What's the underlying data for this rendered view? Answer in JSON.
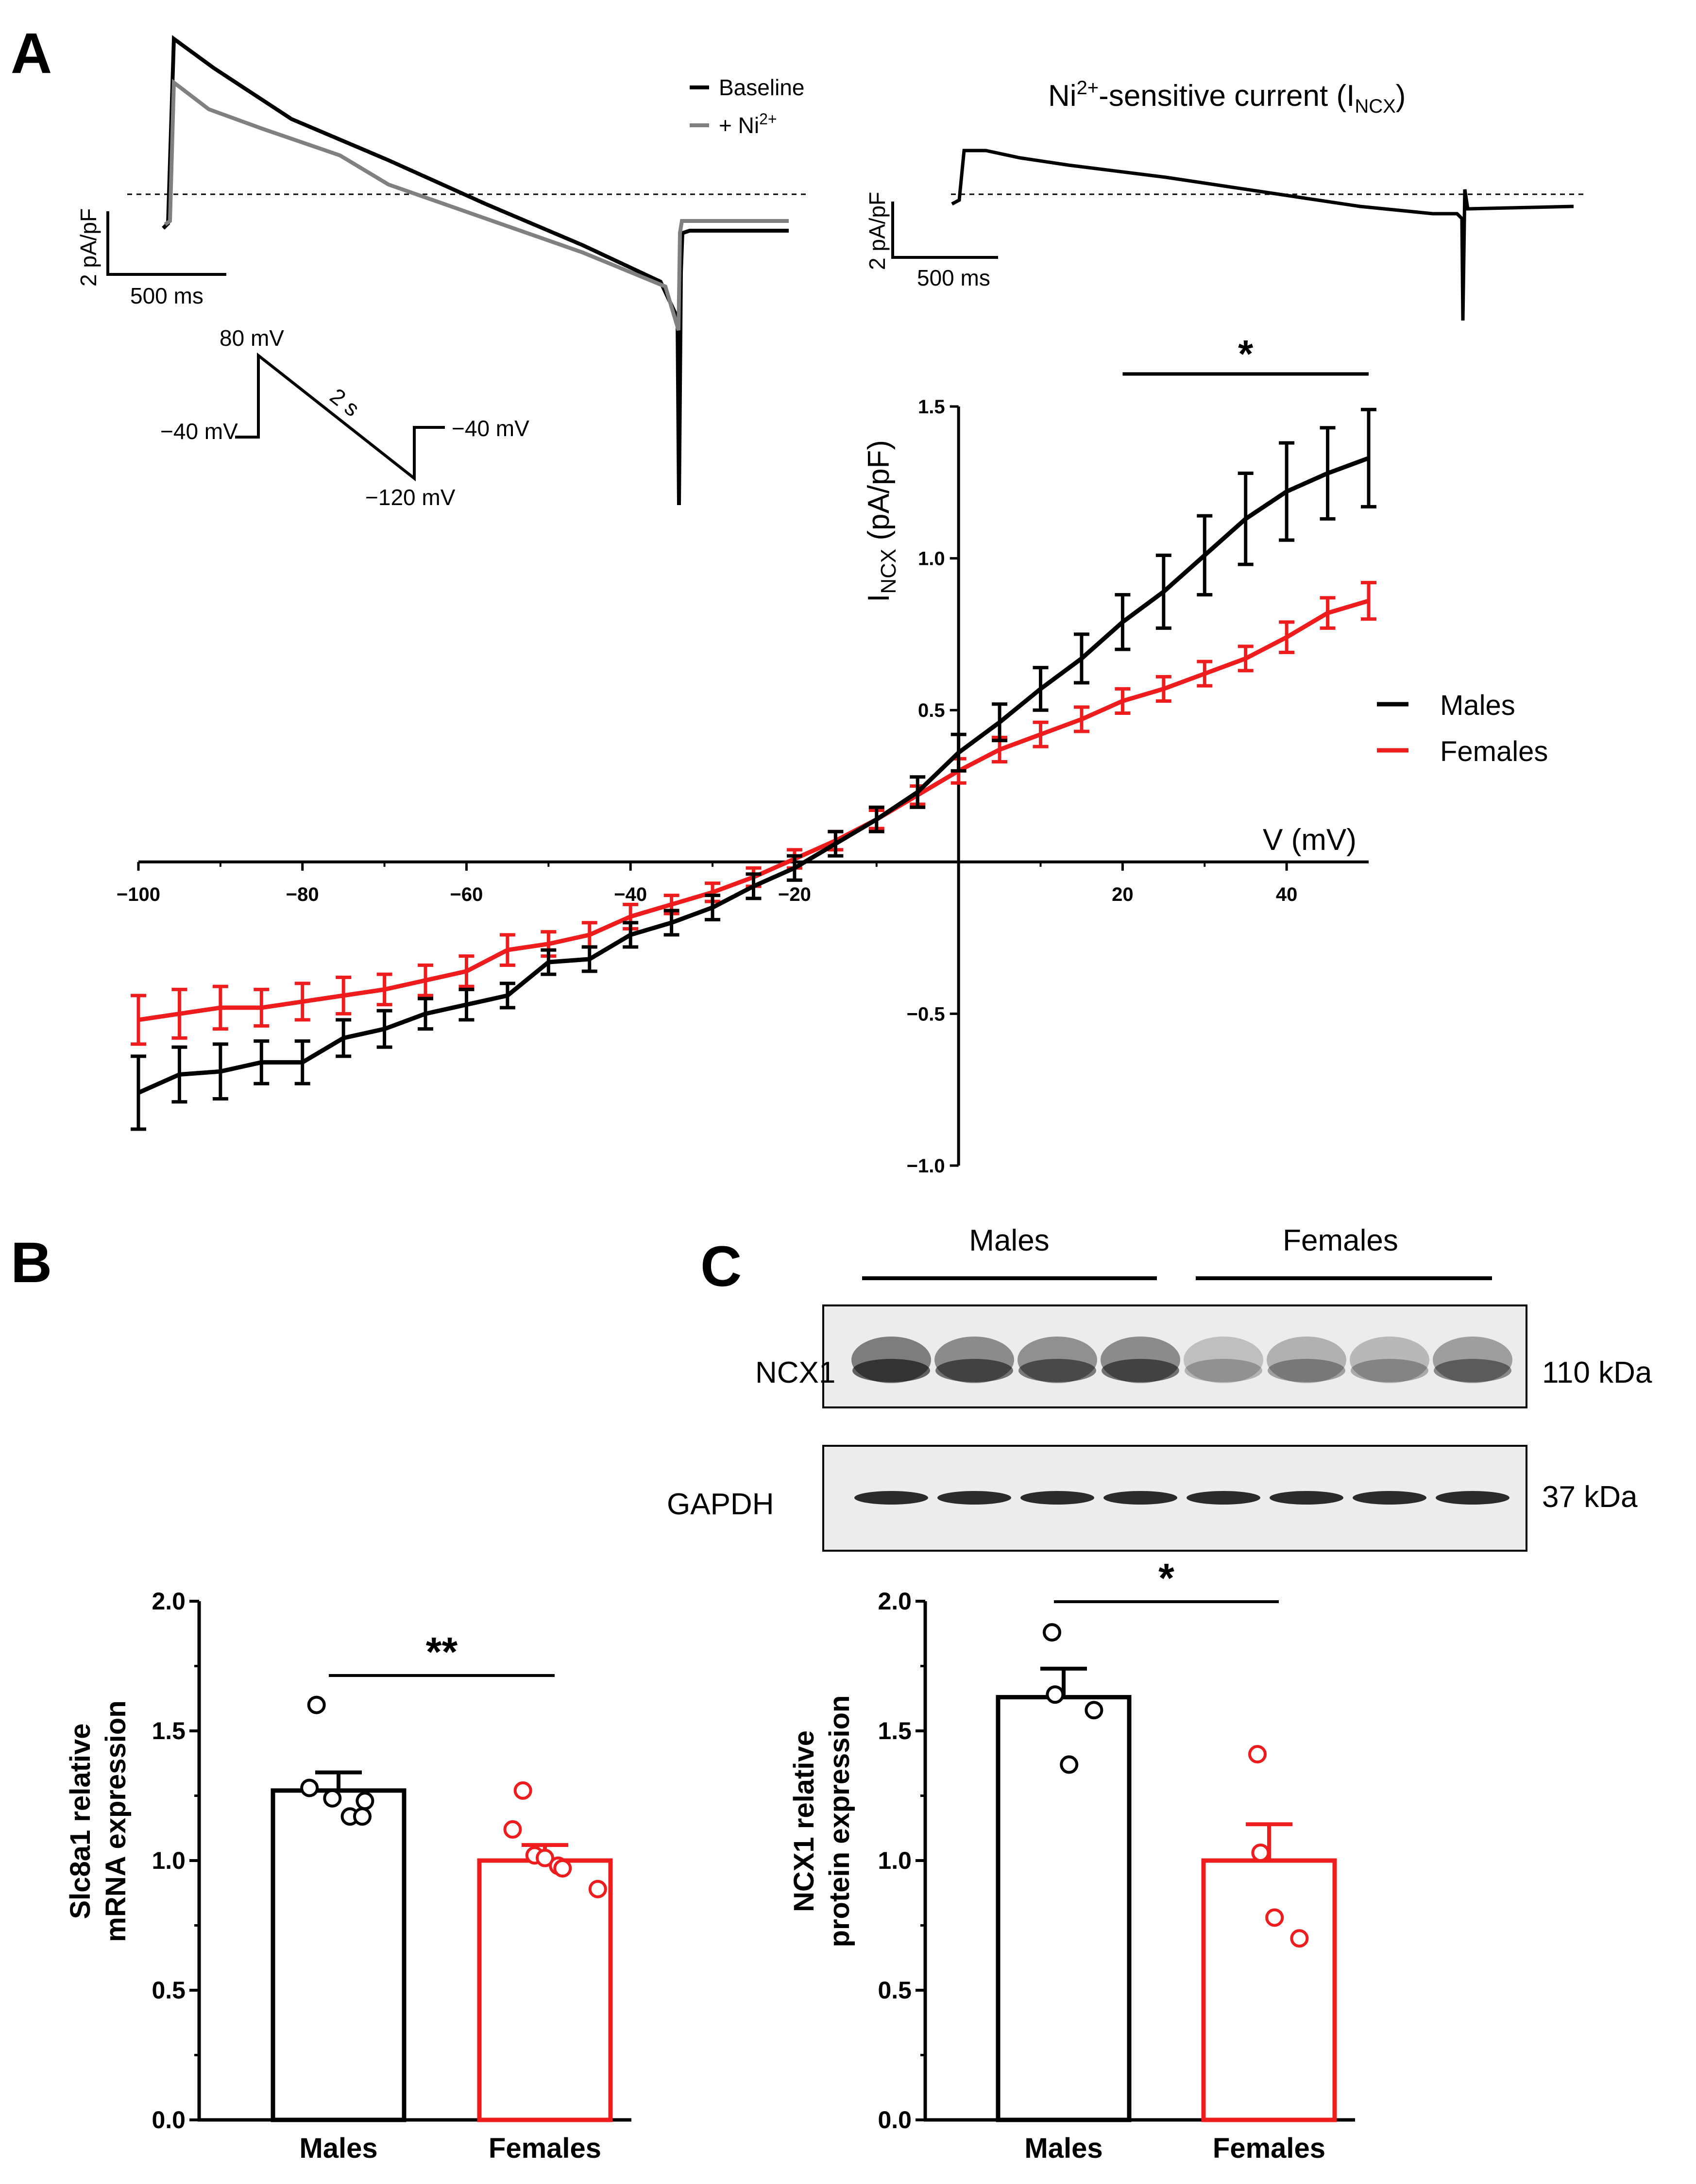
{
  "panels": {
    "a": "A",
    "b": "B",
    "c": "C"
  },
  "colors": {
    "males": "#000000",
    "females": "#ee1c1c",
    "ni": "#808080",
    "blot_bg": "#ececec"
  },
  "traces": {
    "legend_baseline": "Baseline",
    "legend_ni_pre": "+ Ni",
    "legend_ni_sup": "2+",
    "left_scale_y": "2 pA/pF",
    "left_scale_x": "500 ms",
    "right_title_pre": "Ni",
    "right_title_sup": "2+",
    "right_title_mid": "-sensitive current (I",
    "right_title_sub": "NCX",
    "right_title_end": ")",
    "right_scale_y": "2 pA/pF",
    "right_scale_x": "500 ms",
    "protocol": {
      "top": "80 mV",
      "hold_left": "−40 mV",
      "hold_right": "−40 mV",
      "bottom": "−120 mV",
      "duration": "2 s"
    }
  },
  "iv_chart_data": {
    "type": "line",
    "xlabel": "V (mV)",
    "ylabel_main": "I",
    "ylabel_sub": "NCX",
    "ylabel_rest": " (pA/pF)",
    "xlim": [
      -100,
      50
    ],
    "ylim": [
      -1.0,
      1.5
    ],
    "xticks": [
      -100,
      -80,
      -60,
      -40,
      -20,
      20,
      40
    ],
    "xtick_labels": [
      "−100",
      "−80",
      "−60",
      "−40",
      "−20",
      "20",
      "40"
    ],
    "yticks": [
      -1.0,
      -0.5,
      0.5,
      1.0,
      1.5
    ],
    "ytick_labels": [
      "−1.0",
      "−0.5",
      "0.5",
      "1.0",
      "1.5"
    ],
    "significance": "*",
    "sig_range": [
      20,
      50
    ],
    "x": [
      -100,
      -95,
      -90,
      -85,
      -80,
      -75,
      -70,
      -65,
      -60,
      -55,
      -50,
      -45,
      -40,
      -35,
      -30,
      -25,
      -20,
      -15,
      -10,
      -5,
      0,
      5,
      10,
      15,
      20,
      25,
      30,
      35,
      40,
      45,
      50
    ],
    "series": [
      {
        "name": "Males",
        "color": "#000000",
        "values": [
          -0.76,
          -0.7,
          -0.69,
          -0.66,
          -0.66,
          -0.58,
          -0.55,
          -0.5,
          -0.47,
          -0.44,
          -0.33,
          -0.32,
          -0.24,
          -0.2,
          -0.15,
          -0.08,
          -0.02,
          0.06,
          0.14,
          0.23,
          0.36,
          0.46,
          0.57,
          0.67,
          0.79,
          0.89,
          1.01,
          1.13,
          1.22,
          1.28,
          1.33
        ],
        "errors": [
          0.12,
          0.09,
          0.09,
          0.07,
          0.07,
          0.06,
          0.06,
          0.05,
          0.05,
          0.04,
          0.04,
          0.04,
          0.04,
          0.04,
          0.04,
          0.04,
          0.04,
          0.04,
          0.04,
          0.05,
          0.06,
          0.06,
          0.07,
          0.08,
          0.09,
          0.12,
          0.13,
          0.15,
          0.16,
          0.15,
          0.16
        ]
      },
      {
        "name": "Females",
        "color": "#ee1c1c",
        "values": [
          -0.52,
          -0.5,
          -0.48,
          -0.48,
          -0.46,
          -0.44,
          -0.42,
          -0.39,
          -0.36,
          -0.29,
          -0.27,
          -0.24,
          -0.18,
          -0.14,
          -0.1,
          -0.05,
          0.01,
          0.07,
          0.14,
          0.22,
          0.3,
          0.37,
          0.42,
          0.47,
          0.53,
          0.57,
          0.62,
          0.67,
          0.74,
          0.82,
          0.86
        ],
        "errors": [
          0.08,
          0.08,
          0.07,
          0.06,
          0.06,
          0.06,
          0.05,
          0.05,
          0.05,
          0.05,
          0.04,
          0.04,
          0.04,
          0.03,
          0.03,
          0.03,
          0.03,
          0.03,
          0.03,
          0.03,
          0.04,
          0.04,
          0.04,
          0.04,
          0.04,
          0.04,
          0.04,
          0.04,
          0.05,
          0.05,
          0.06
        ]
      }
    ]
  },
  "bar_b": {
    "type": "bar",
    "ylabel_line1": "Slc8a1 relative",
    "ylabel_line2": "mRNA expression",
    "categories": [
      "Males",
      "Females"
    ],
    "means": [
      1.27,
      1.0
    ],
    "sem": [
      0.07,
      0.06
    ],
    "points": [
      [
        1.6,
        1.28,
        1.24,
        1.17,
        1.17,
        1.23
      ],
      [
        1.27,
        1.12,
        1.02,
        1.01,
        0.98,
        0.97,
        0.89
      ]
    ],
    "ylim": [
      0,
      2.0
    ],
    "yticks": [
      0.0,
      0.5,
      1.0,
      1.5,
      2.0
    ],
    "ytick_labels": [
      "0.0",
      "0.5",
      "1.0",
      "1.5",
      "2.0"
    ],
    "significance": "**"
  },
  "bar_c": {
    "type": "bar",
    "ylabel_line1": "NCX1 relative",
    "ylabel_line2": "protein expression",
    "categories": [
      "Males",
      "Females"
    ],
    "means": [
      1.63,
      1.0
    ],
    "sem": [
      0.11,
      0.14
    ],
    "points": [
      [
        1.88,
        1.64,
        1.37,
        1.58
      ],
      [
        1.41,
        1.03,
        0.78,
        0.7
      ]
    ],
    "ylim": [
      0,
      2.0
    ],
    "yticks": [
      0.0,
      0.5,
      1.0,
      1.5,
      2.0
    ],
    "ytick_labels": [
      "0.0",
      "0.5",
      "1.0",
      "1.5",
      "2.0"
    ],
    "significance": "*"
  },
  "blot": {
    "group_males": "Males",
    "group_females": "Females",
    "row1_label": "NCX1",
    "row1_size": "110 kDa",
    "row2_label": "GAPDH",
    "row2_size": "37 kDa",
    "lanes": 8
  },
  "legend": {
    "males": "Males",
    "females": "Females"
  }
}
